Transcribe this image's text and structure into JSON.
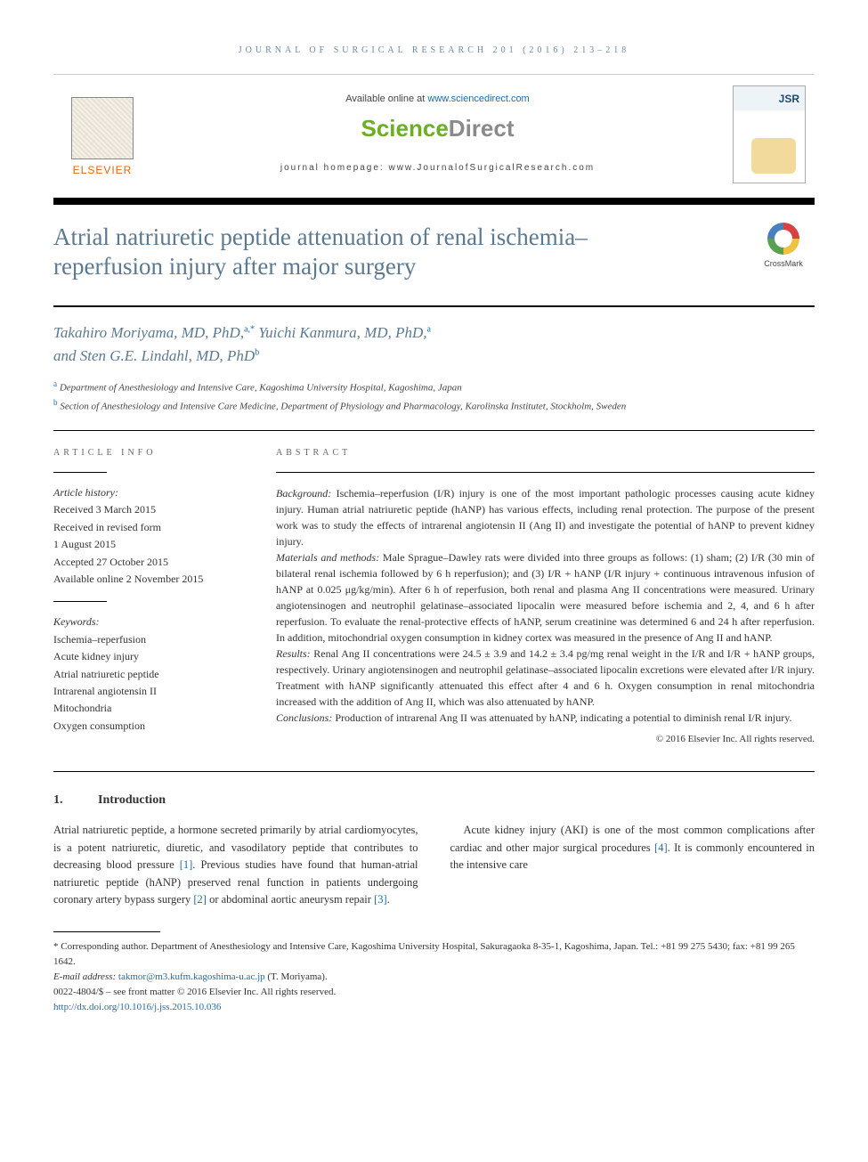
{
  "header": {
    "journal_ref": "JOURNAL OF SURGICAL RESEARCH 201 (2016) 213–218",
    "available_prefix": "Available online at ",
    "available_link": "www.sciencedirect.com",
    "sd_logo_a": "Science",
    "sd_logo_b": "Direct",
    "homepage": "journal homepage: www.JournalofSurgicalResearch.com",
    "elsevier": "ELSEVIER",
    "cover_label": "JSR"
  },
  "crossmark": {
    "label": "CrossMark"
  },
  "title": "Atrial natriuretic peptide attenuation of renal ischemia–reperfusion injury after major surgery",
  "authors_html_parts": {
    "a1_name": "Takahiro Moriyama, MD, PhD,",
    "a1_sup": "a,",
    "a1_star": "*",
    "a2_name": " Yuichi Kanmura, MD, PhD,",
    "a2_sup": "a",
    "and": "and ",
    "a3_name": "Sten G.E. Lindahl, MD, PhD",
    "a3_sup": "b"
  },
  "affiliations": {
    "a": "Department of Anesthesiology and Intensive Care, Kagoshima University Hospital, Kagoshima, Japan",
    "b": "Section of Anesthesiology and Intensive Care Medicine, Department of Physiology and Pharmacology, Karolinska Institutet, Stockholm, Sweden"
  },
  "info": {
    "label": "ARTICLE INFO",
    "history_head": "Article history:",
    "h1": "Received 3 March 2015",
    "h2": "Received in revised form",
    "h3": "1 August 2015",
    "h4": "Accepted 27 October 2015",
    "h5": "Available online 2 November 2015",
    "kw_head": "Keywords:",
    "k1": "Ischemia–reperfusion",
    "k2": "Acute kidney injury",
    "k3": "Atrial natriuretic peptide",
    "k4": "Intrarenal angiotensin II",
    "k5": "Mitochondria",
    "k6": "Oxygen consumption"
  },
  "abstract": {
    "label": "ABSTRACT",
    "bg_head": "Background:",
    "bg": " Ischemia–reperfusion (I/R) injury is one of the most important pathologic processes causing acute kidney injury. Human atrial natriuretic peptide (hANP) has various effects, including renal protection. The purpose of the present work was to study the effects of intrarenal angiotensin II (Ang II) and investigate the potential of hANP to prevent kidney injury.",
    "mm_head": "Materials and methods:",
    "mm": " Male Sprague–Dawley rats were divided into three groups as follows: (1) sham; (2) I/R (30 min of bilateral renal ischemia followed by 6 h reperfusion); and (3) I/R + hANP (I/R injury + continuous intravenous infusion of hANP at 0.025 μg/kg/min). After 6 h of reperfusion, both renal and plasma Ang II concentrations were measured. Urinary angiotensinogen and neutrophil gelatinase–associated lipocalin were measured before ischemia and 2, 4, and 6 h after reperfusion. To evaluate the renal-protective effects of hANP, serum creatinine was determined 6 and 24 h after reperfusion. In addition, mitochondrial oxygen consumption in kidney cortex was measured in the presence of Ang II and hANP.",
    "res_head": "Results:",
    "res": " Renal Ang II concentrations were 24.5 ± 3.9 and 14.2 ± 3.4 pg/mg renal weight in the I/R and I/R + hANP groups, respectively. Urinary angiotensinogen and neutrophil gelatinase–associated lipocalin excretions were elevated after I/R injury. Treatment with hANP significantly attenuated this effect after 4 and 6 h. Oxygen consumption in renal mitochondria increased with the addition of Ang II, which was also attenuated by hANP.",
    "con_head": "Conclusions:",
    "con": " Production of intrarenal Ang II was attenuated by hANP, indicating a potential to diminish renal I/R injury.",
    "copyright": "© 2016 Elsevier Inc. All rights reserved."
  },
  "section1": {
    "num": "1.",
    "title": "Introduction",
    "p1": "Atrial natriuretic peptide, a hormone secreted primarily by atrial cardiomyocytes, is a potent natriuretic, diuretic, and vasodilatory peptide that contributes to decreasing blood pressure [1]. Previous studies have found that human-atrial natriuretic peptide (hANP) preserved renal function in patients undergoing coronary artery bypass surgery [2] or abdominal aortic aneurysm repair [3].",
    "p2": "Acute kidney injury (AKI) is one of the most common complications after cardiac and other major surgical procedures [4]. It is commonly encountered in the intensive care"
  },
  "footnotes": {
    "corr": "* Corresponding author. Department of Anesthesiology and Intensive Care, Kagoshima University Hospital, Sakuragaoka 8-35-1, Kagoshima, Japan. Tel.: +81 99 275 5430; fax: +81 99 265 1642.",
    "email_label": "E-mail address: ",
    "email": "takmor@m3.kufm.kagoshima-u.ac.jp",
    "email_suffix": " (T. Moriyama).",
    "issn": "0022-4804/$ – see front matter © 2016 Elsevier Inc. All rights reserved.",
    "doi": "http://dx.doi.org/10.1016/j.jss.2015.10.036"
  },
  "colors": {
    "link": "#1a6db3",
    "heading": "#5a7a93",
    "orange": "#eb6500",
    "sd_green": "#6bb023",
    "sd_grey": "#8a8a8a"
  }
}
